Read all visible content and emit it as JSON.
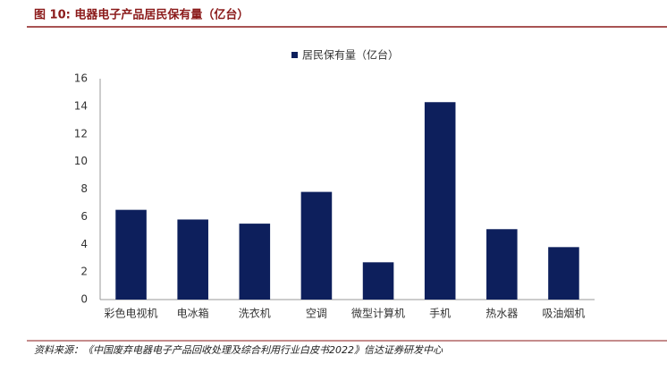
{
  "chart_data": {
    "type": "bar",
    "title": "图 10: 电器电子产品居民保有量（亿台）",
    "source": "资料来源：《中国废弃电器电子产品回收处理及综合利用行业白皮书2022》信达证券研发中心",
    "categories": [
      "彩色电视机",
      "电冰箱",
      "洗衣机",
      "空调",
      "微型计算机",
      "手机",
      "热水器",
      "吸油烟机"
    ],
    "series": [
      {
        "name": "居民保有量（亿台）",
        "color": "#0d1f5c",
        "values": [
          6.5,
          5.8,
          5.5,
          7.8,
          2.7,
          14.3,
          5.1,
          3.8
        ]
      }
    ],
    "ylim": [
      0,
      16
    ],
    "yticks": [
      0,
      2,
      4,
      6,
      8,
      10,
      12,
      14,
      16
    ],
    "grid": false
  }
}
